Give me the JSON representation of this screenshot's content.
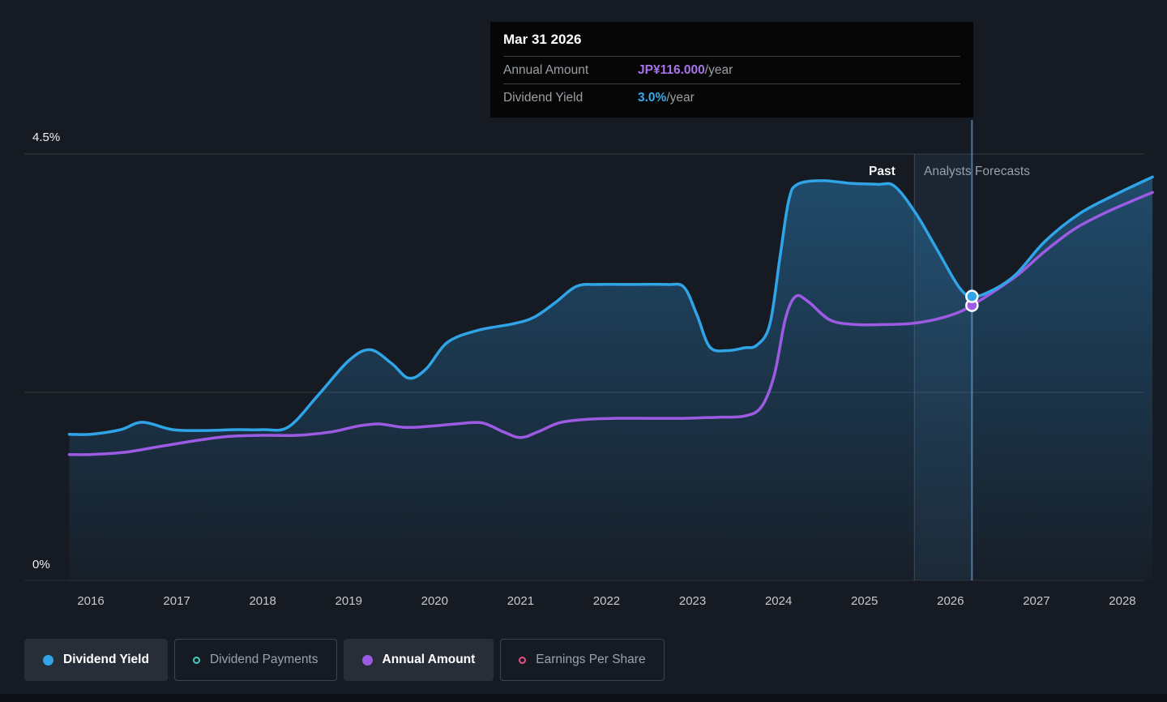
{
  "tooltip": {
    "title": "Mar 31 2026",
    "rows": [
      {
        "label": "Annual Amount",
        "value": "JP¥116.000",
        "suffix": "/year",
        "value_color": "#a873ea"
      },
      {
        "label": "Dividend Yield",
        "value": "3.0%",
        "suffix": "/year",
        "value_color": "#38a9ec"
      }
    ]
  },
  "axis": {
    "y_top_label": "4.5%",
    "y_bottom_label": "0%",
    "years": [
      "2016",
      "2017",
      "2018",
      "2019",
      "2020",
      "2021",
      "2022",
      "2023",
      "2024",
      "2025",
      "2026",
      "2027",
      "2028"
    ]
  },
  "annotations": {
    "past_label": "Past",
    "forecast_label": "Analysts Forecasts"
  },
  "legend": [
    {
      "label": "Dividend Yield",
      "color": "#2fa4e7",
      "filled": true,
      "active": true
    },
    {
      "label": "Dividend Payments",
      "color": "#3ecfc0",
      "filled": false,
      "active": false
    },
    {
      "label": "Annual Amount",
      "color": "#9d5be4",
      "filled": true,
      "active": true
    },
    {
      "label": "Earnings Per Share",
      "color": "#e8508c",
      "filled": false,
      "active": false
    }
  ],
  "chart_data": {
    "type": "line",
    "title": "Dividend yield history and forecast",
    "x_range": [
      2015.75,
      2028.35
    ],
    "past_forecast_divider_x": 2025.58,
    "hover_x": 2026.25,
    "y_axis_percent": {
      "min": 0,
      "max": 4.5
    },
    "legend_position": "bottom",
    "grid": true,
    "series": [
      {
        "name": "Dividend Yield",
        "unit": "percent",
        "color": "#2fa4e7",
        "area_fill": true,
        "points": [
          [
            2015.75,
            1.45
          ],
          [
            2016.0,
            1.45
          ],
          [
            2016.35,
            1.5
          ],
          [
            2016.6,
            1.58
          ],
          [
            2016.95,
            1.5
          ],
          [
            2017.3,
            1.49
          ],
          [
            2017.7,
            1.5
          ],
          [
            2018.0,
            1.5
          ],
          [
            2018.3,
            1.53
          ],
          [
            2018.65,
            1.88
          ],
          [
            2019.0,
            2.25
          ],
          [
            2019.25,
            2.37
          ],
          [
            2019.5,
            2.22
          ],
          [
            2019.7,
            2.06
          ],
          [
            2019.9,
            2.16
          ],
          [
            2020.15,
            2.45
          ],
          [
            2020.5,
            2.58
          ],
          [
            2020.9,
            2.65
          ],
          [
            2021.15,
            2.72
          ],
          [
            2021.4,
            2.88
          ],
          [
            2021.65,
            3.06
          ],
          [
            2021.9,
            3.08
          ],
          [
            2022.3,
            3.08
          ],
          [
            2022.7,
            3.08
          ],
          [
            2022.9,
            3.05
          ],
          [
            2023.05,
            2.75
          ],
          [
            2023.2,
            2.4
          ],
          [
            2023.4,
            2.36
          ],
          [
            2023.6,
            2.39
          ],
          [
            2023.75,
            2.42
          ],
          [
            2023.9,
            2.65
          ],
          [
            2024.02,
            3.4
          ],
          [
            2024.12,
            4.0
          ],
          [
            2024.22,
            4.17
          ],
          [
            2024.5,
            4.21
          ],
          [
            2024.85,
            4.18
          ],
          [
            2025.15,
            4.17
          ],
          [
            2025.35,
            4.15
          ],
          [
            2025.6,
            3.85
          ],
          [
            2025.85,
            3.45
          ],
          [
            2026.1,
            3.05
          ],
          [
            2026.25,
            2.95
          ],
          [
            2026.45,
            3.0
          ],
          [
            2026.75,
            3.18
          ],
          [
            2027.1,
            3.55
          ],
          [
            2027.5,
            3.85
          ],
          [
            2027.9,
            4.05
          ],
          [
            2028.35,
            4.25
          ]
        ]
      },
      {
        "name": "Annual Amount",
        "unit": "JPY_per_year",
        "color": "#9d5be4",
        "area_fill": false,
        "points": [
          [
            2015.75,
            50
          ],
          [
            2016.0,
            50
          ],
          [
            2016.4,
            51
          ],
          [
            2016.8,
            53.5
          ],
          [
            2017.2,
            56
          ],
          [
            2017.6,
            58
          ],
          [
            2018.0,
            58.5
          ],
          [
            2018.4,
            58.5
          ],
          [
            2018.8,
            60
          ],
          [
            2019.1,
            62.5
          ],
          [
            2019.35,
            63.5
          ],
          [
            2019.65,
            62
          ],
          [
            2019.95,
            62.5
          ],
          [
            2020.25,
            63.5
          ],
          [
            2020.55,
            64
          ],
          [
            2020.8,
            60
          ],
          [
            2021.0,
            57.5
          ],
          [
            2021.2,
            60
          ],
          [
            2021.45,
            64
          ],
          [
            2021.75,
            65.5
          ],
          [
            2022.1,
            66
          ],
          [
            2022.5,
            66
          ],
          [
            2022.9,
            66
          ],
          [
            2023.3,
            66.5
          ],
          [
            2023.6,
            67
          ],
          [
            2023.8,
            71
          ],
          [
            2023.95,
            85
          ],
          [
            2024.08,
            110
          ],
          [
            2024.2,
            120
          ],
          [
            2024.35,
            117.5
          ],
          [
            2024.6,
            109.5
          ],
          [
            2024.9,
            107.5
          ],
          [
            2025.2,
            107.5
          ],
          [
            2025.55,
            108
          ],
          [
            2025.85,
            110
          ],
          [
            2026.1,
            113
          ],
          [
            2026.25,
            116
          ],
          [
            2026.5,
            122
          ],
          [
            2026.8,
            130
          ],
          [
            2027.1,
            140
          ],
          [
            2027.45,
            150
          ],
          [
            2027.8,
            157
          ],
          [
            2028.1,
            162
          ],
          [
            2028.35,
            166
          ]
        ]
      }
    ],
    "highlight_marker": {
      "x": 2026.25,
      "date": "Mar 31 2026",
      "dividend_yield_percent": 3.0,
      "annual_amount_jpy": 116
    }
  }
}
